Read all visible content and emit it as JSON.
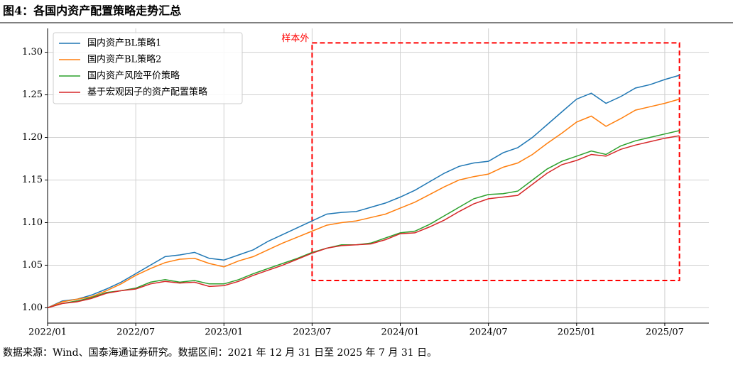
{
  "chart_data": {
    "type": "line",
    "title": "图4：各国内资产配置策略走势汇总",
    "source": "数据来源：Wind、国泰海通证券研究。数据区间：2021 年 12 月 31 日至 2025 年 7 月 31 日。",
    "x": [
      "2022/01",
      "2022/02",
      "2022/03",
      "2022/04",
      "2022/05",
      "2022/06",
      "2022/07",
      "2022/08",
      "2022/09",
      "2022/10",
      "2022/11",
      "2022/12",
      "2023/01",
      "2023/02",
      "2023/03",
      "2023/04",
      "2023/05",
      "2023/06",
      "2023/07",
      "2023/08",
      "2023/09",
      "2023/10",
      "2023/11",
      "2023/12",
      "2024/01",
      "2024/02",
      "2024/03",
      "2024/04",
      "2024/05",
      "2024/06",
      "2024/07",
      "2024/08",
      "2024/09",
      "2024/10",
      "2024/11",
      "2024/12",
      "2025/01",
      "2025/02",
      "2025/03",
      "2025/04",
      "2025/05",
      "2025/06",
      "2025/07",
      "2025/08"
    ],
    "series": [
      {
        "name": "国内资产BL策略1",
        "color": "#1f77b4",
        "values": [
          1.0,
          1.008,
          1.01,
          1.015,
          1.022,
          1.03,
          1.04,
          1.05,
          1.06,
          1.062,
          1.065,
          1.058,
          1.056,
          1.062,
          1.068,
          1.078,
          1.086,
          1.094,
          1.102,
          1.11,
          1.112,
          1.113,
          1.118,
          1.123,
          1.13,
          1.138,
          1.148,
          1.158,
          1.166,
          1.17,
          1.172,
          1.182,
          1.188,
          1.2,
          1.215,
          1.23,
          1.245,
          1.252,
          1.24,
          1.248,
          1.258,
          1.262,
          1.268,
          1.273
        ]
      },
      {
        "name": "国内资产BL策略2",
        "color": "#ff7f0e",
        "values": [
          1.0,
          1.007,
          1.01,
          1.013,
          1.02,
          1.028,
          1.038,
          1.046,
          1.053,
          1.057,
          1.058,
          1.052,
          1.048,
          1.055,
          1.06,
          1.068,
          1.076,
          1.083,
          1.09,
          1.097,
          1.1,
          1.102,
          1.106,
          1.11,
          1.117,
          1.124,
          1.133,
          1.142,
          1.15,
          1.154,
          1.157,
          1.165,
          1.17,
          1.18,
          1.193,
          1.205,
          1.218,
          1.225,
          1.213,
          1.222,
          1.232,
          1.236,
          1.24,
          1.245
        ]
      },
      {
        "name": "国内资产风险平价策略",
        "color": "#2ca02c",
        "values": [
          1.0,
          1.005,
          1.008,
          1.012,
          1.018,
          1.02,
          1.023,
          1.03,
          1.033,
          1.03,
          1.032,
          1.028,
          1.028,
          1.033,
          1.04,
          1.046,
          1.052,
          1.058,
          1.065,
          1.07,
          1.074,
          1.074,
          1.076,
          1.082,
          1.088,
          1.09,
          1.098,
          1.108,
          1.118,
          1.128,
          1.133,
          1.134,
          1.137,
          1.15,
          1.163,
          1.172,
          1.178,
          1.184,
          1.18,
          1.19,
          1.196,
          1.2,
          1.204,
          1.208
        ]
      },
      {
        "name": "基于宏观因子的资产配置策略",
        "color": "#d62728",
        "values": [
          1.0,
          1.005,
          1.007,
          1.011,
          1.017,
          1.02,
          1.022,
          1.028,
          1.031,
          1.029,
          1.03,
          1.025,
          1.026,
          1.031,
          1.038,
          1.044,
          1.05,
          1.057,
          1.064,
          1.07,
          1.073,
          1.074,
          1.075,
          1.08,
          1.087,
          1.088,
          1.095,
          1.103,
          1.113,
          1.122,
          1.128,
          1.13,
          1.132,
          1.145,
          1.158,
          1.168,
          1.173,
          1.18,
          1.178,
          1.186,
          1.191,
          1.195,
          1.199,
          1.202
        ]
      }
    ],
    "xlim": [
      "2022/01",
      "2025/10"
    ],
    "xticks": [
      "2022/01",
      "2022/07",
      "2023/01",
      "2023/07",
      "2024/01",
      "2024/07",
      "2025/01",
      "2025/07"
    ],
    "ylim": [
      0.982,
      1.328
    ],
    "yticks": [
      {
        "value": 1.0,
        "label": "1.00"
      },
      {
        "value": 1.05,
        "label": "1.05"
      },
      {
        "value": 1.1,
        "label": "1.10"
      },
      {
        "value": 1.15,
        "label": "1.15"
      },
      {
        "value": 1.2,
        "label": "1.20"
      },
      {
        "value": 1.25,
        "label": "1.25"
      },
      {
        "value": 1.3,
        "label": "1.30"
      }
    ],
    "grid": true,
    "legend": "upper-left",
    "annotation": {
      "text": "样本外",
      "color": "#ff0000",
      "x": [
        "2023/07",
        "2025/08"
      ],
      "y": [
        1.032,
        1.311
      ]
    }
  }
}
